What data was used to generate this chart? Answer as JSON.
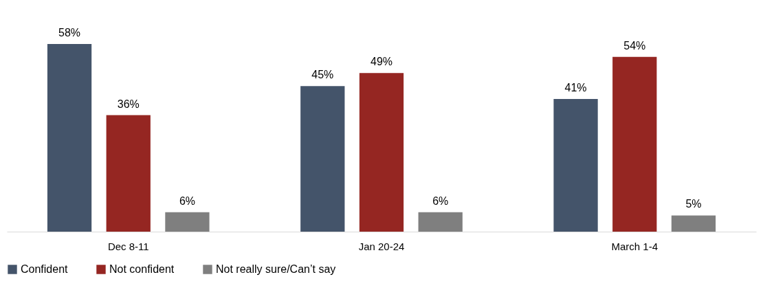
{
  "chart_data": {
    "type": "bar",
    "categories": [
      "Dec 8-11",
      "Jan 20-24",
      "March 1-4"
    ],
    "series": [
      {
        "name": "Confident",
        "color": "#44546a",
        "values": [
          58,
          45,
          41
        ],
        "value_labels": [
          "58%",
          "45%",
          "41%"
        ]
      },
      {
        "name": "Not confident",
        "color": "#952622",
        "values": [
          36,
          49,
          54
        ],
        "value_labels": [
          "36%",
          "49%",
          "54%"
        ]
      },
      {
        "name": "Not really sure/Can’t say",
        "color": "#7f7f7f",
        "values": [
          6,
          6,
          5
        ],
        "value_labels": [
          "6%",
          "6%",
          "5%"
        ]
      }
    ],
    "legend": "bottom",
    "grid": false
  }
}
